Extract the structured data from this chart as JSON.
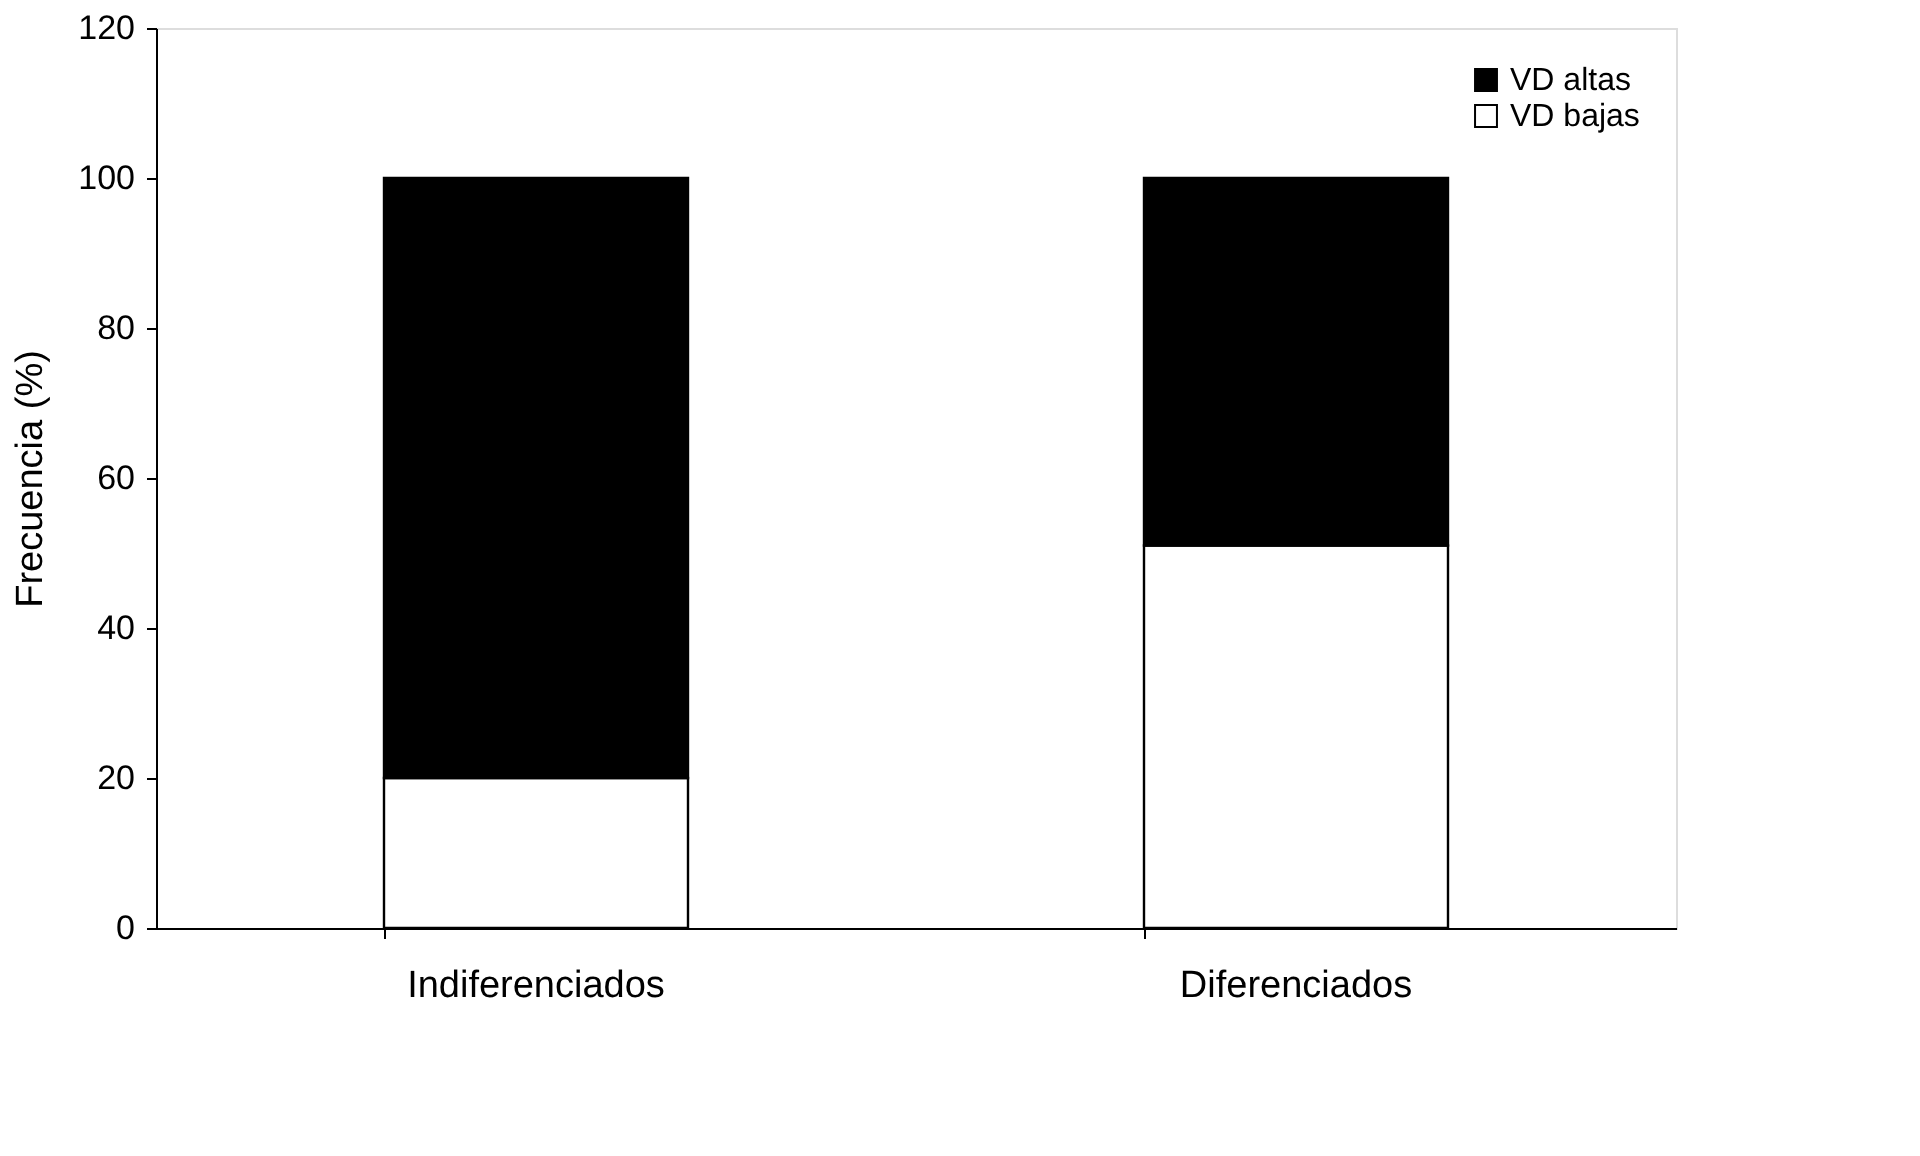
{
  "chart_data": {
    "type": "bar",
    "stacked": true,
    "ylabel": "Frecuencia (%)",
    "categories": [
      "Indiferenciados",
      "Diferenciados"
    ],
    "series": [
      {
        "name": "VD bajas",
        "color": "#ffffff",
        "values": [
          20,
          51
        ]
      },
      {
        "name": "VD altas",
        "color": "#000000",
        "values": [
          80,
          49
        ]
      }
    ],
    "ylim": [
      0,
      120
    ],
    "yticks": [
      0,
      20,
      40,
      60,
      80,
      100,
      120
    ],
    "grid": false,
    "legend": "top right"
  }
}
